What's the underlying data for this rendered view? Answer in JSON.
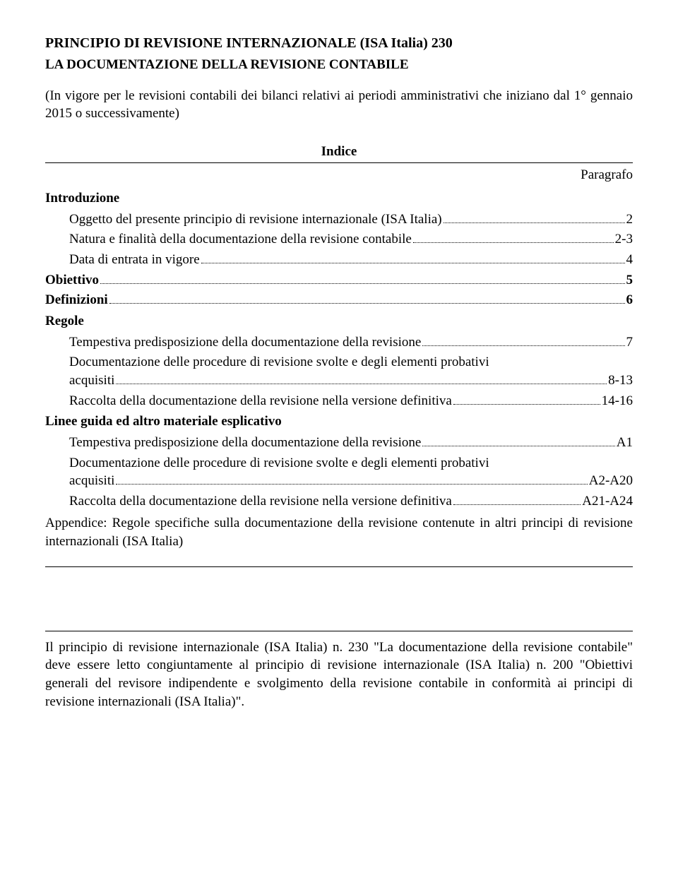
{
  "header": {
    "title": "PRINCIPIO DI REVISIONE INTERNAZIONALE (ISA Italia) 230",
    "subtitle": "LA DOCUMENTAZIONE DELLA REVISIONE CONTABILE",
    "applicability": "(In vigore per le revisioni contabili dei bilanci relativi ai periodi amministrativi che iniziano dal 1° gennaio 2015 o successivamente)"
  },
  "toc": {
    "heading": "Indice",
    "column_label": "Paragrafo",
    "sections": {
      "introduzione": "Introduzione",
      "obiettivo": {
        "label": "Obiettivo",
        "page": "5"
      },
      "definizioni": {
        "label": "Definizioni",
        "page": "6"
      },
      "regole": "Regole",
      "linee_guida": "Linee guida ed altro materiale esplicativo"
    },
    "intro_items": [
      {
        "label": "Oggetto del presente principio di revisione internazionale (ISA Italia)",
        "page": "2"
      },
      {
        "label": "Natura e finalità della documentazione della revisione contabile",
        "page": "2-3"
      },
      {
        "label": "Data di entrata in vigore",
        "page": "4"
      }
    ],
    "regole_items": {
      "r0": {
        "label": "Tempestiva predisposizione della documentazione della revisione",
        "page": "7"
      },
      "r1": {
        "line1": "Documentazione delle procedure di revisione svolte e degli elementi probativi",
        "line2_label": "acquisiti",
        "page": "8-13"
      },
      "r2": {
        "label": "Raccolta della documentazione della revisione nella versione definitiva",
        "page": "14-16"
      }
    },
    "linee_items": {
      "l0": {
        "label": "Tempestiva predisposizione della documentazione della revisione",
        "page": "A1"
      },
      "l1": {
        "line1": "Documentazione delle procedure di revisione svolte e degli elementi probativi",
        "line2_label": "acquisiti",
        "page": "A2-A20"
      },
      "l2": {
        "label": "Raccolta della documentazione della revisione nella versione definitiva",
        "page": "A21-A24"
      }
    },
    "appendix": "Appendice: Regole specifiche sulla documentazione della revisione contenute in altri principi di revisione internazionali (ISA Italia)"
  },
  "footnote": "Il principio di revisione internazionale (ISA Italia) n. 230 \"La documentazione della revisione contabile\" deve essere letto congiuntamente al principio di revisione internazionale (ISA Italia) n. 200 \"Obiettivi generali del revisore indipendente e svolgimento della revisione contabile in conformità ai principi di revisione internazionali (ISA Italia)\"."
}
